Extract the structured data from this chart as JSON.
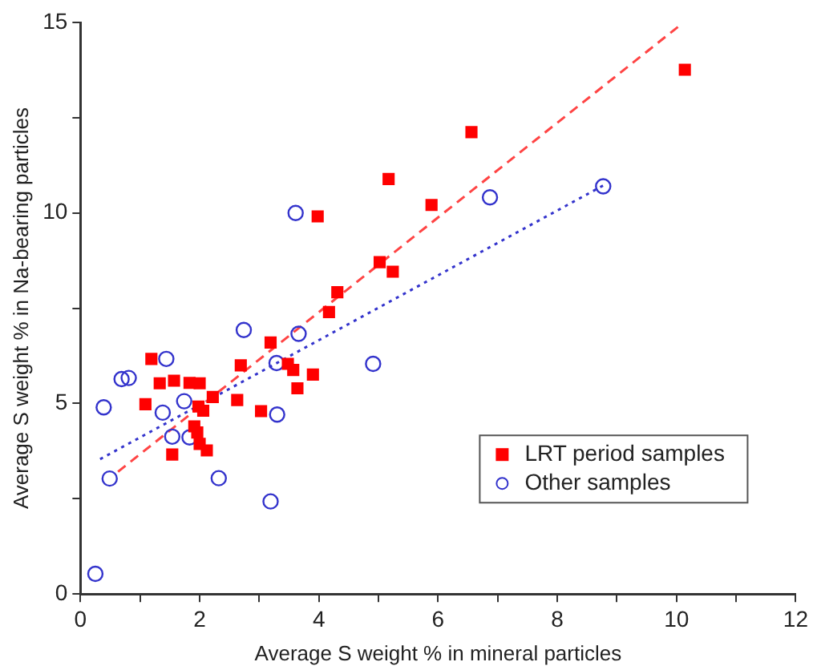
{
  "chart_data": {
    "type": "scatter",
    "xlabel": "Average S weight % in mineral particles",
    "ylabel": "Average S weight % in Na-bearing particles",
    "xlim": [
      0,
      12
    ],
    "ylim": [
      0,
      15
    ],
    "xticks": [
      0,
      {
        "value": 1,
        "label": null
      },
      2,
      {
        "value": 3,
        "label": null
      },
      4,
      {
        "value": 5,
        "label": null
      },
      6,
      {
        "value": 7,
        "label": null
      },
      8,
      {
        "value": 9,
        "label": null
      },
      10,
      {
        "value": 11,
        "label": null
      },
      12
    ],
    "yticks": [
      0,
      {
        "value": 2.5,
        "label": null
      },
      5,
      {
        "value": 7.5,
        "label": null
      },
      10,
      {
        "value": 12.5,
        "label": null
      },
      15
    ],
    "grid": false,
    "legend": "bottom right",
    "series": [
      {
        "name": "LRT period samples",
        "color": "#ff0000",
        "marker": "square",
        "x": [
          10.14,
          6.56,
          5.89,
          5.24,
          5.17,
          3.98,
          5.02,
          4.31,
          4.17,
          3.19,
          2.69,
          3.48,
          3.57,
          3.9,
          3.64,
          2.63,
          3.03,
          1.19,
          1.33,
          1.57,
          1.83,
          2.0,
          2.22,
          1.09,
          1.98,
          2.06,
          1.91,
          1.96,
          2.0,
          2.12,
          1.54
        ],
        "values": [
          13.76,
          12.12,
          10.21,
          8.46,
          10.89,
          9.91,
          8.71,
          7.92,
          7.4,
          6.6,
          6.0,
          6.04,
          5.88,
          5.76,
          5.4,
          5.09,
          4.8,
          6.17,
          5.53,
          5.6,
          5.54,
          5.53,
          5.17,
          4.98,
          4.92,
          4.81,
          4.4,
          4.24,
          3.94,
          3.77,
          3.66
        ]
      },
      {
        "name": "Other samples",
        "color": "#3333cc",
        "marker": "circle",
        "x": [
          8.77,
          6.87,
          3.61,
          2.74,
          3.66,
          1.44,
          3.29,
          4.91,
          0.69,
          0.81,
          1.74,
          0.39,
          1.38,
          3.3,
          1.54,
          1.83,
          0.49,
          2.32,
          3.19,
          0.25
        ],
        "values": [
          10.7,
          10.41,
          10.0,
          6.93,
          6.83,
          6.17,
          6.06,
          6.04,
          5.64,
          5.67,
          5.06,
          4.9,
          4.76,
          4.71,
          4.13,
          4.11,
          3.03,
          3.04,
          2.43,
          0.53
        ]
      },
      {
        "type": "line",
        "color": "#ff4444",
        "line_style": "dashed",
        "marker": "none",
        "x": [
          0.63,
          10.03
        ],
        "values": [
          3.21,
          14.89
        ]
      },
      {
        "type": "line",
        "color": "#3333cc",
        "line_style": "dotted",
        "marker": "none",
        "x": [
          0.33,
          8.77
        ],
        "values": [
          3.54,
          10.72
        ]
      }
    ]
  }
}
